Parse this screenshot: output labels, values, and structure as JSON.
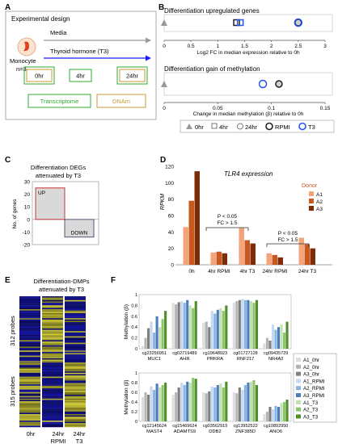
{
  "panel_a": {
    "letter": "A",
    "title": "Experimental design",
    "cell_label": "Monocyte",
    "n_label": "n=3",
    "media_label": "Media",
    "t3_label": "Thyroid hormone (T3)",
    "time_0": "0hr",
    "time_4": "4hr",
    "time_24": "24hr",
    "assay_1": "Transcriptome",
    "assay_2": "DNAm"
  },
  "panel_b": {
    "letter": "B",
    "legend_0hr": "0hr",
    "legend_4hr": "4hr",
    "legend_24hr": "24hr",
    "legend_rpmi": "RPMI",
    "legend_t3": "T3"
  },
  "panel_c": {
    "letter": "C"
  },
  "panel_d": {
    "letter": "D",
    "pv_1": "P < 0.05",
    "fc_1": "FC > 1.5",
    "pv_2": "P < 0.05",
    "fc_2": "FC > 1.5"
  },
  "panel_e": {
    "letter": "E",
    "title_1": "Differentiation-DMPs",
    "title_2": "attenuated by T3",
    "group_1": "312 probes",
    "group_2": "315 probes",
    "col_1": "0hr",
    "col_2_a": "24hr",
    "col_2_b": "RPMI",
    "col_3_a": "24hr",
    "col_3_b": "T3"
  },
  "panel_f": {
    "letter": "F"
  },
  "colors": {
    "media_arrow": "#999999",
    "t3_arrow": "#1a1aff",
    "assay_1": "#33aa33",
    "assay_2": "#cc9933",
    "rpmi": "#222222",
    "t3": "#2255ee",
    "donor_a1": "#f3a47b",
    "donor_a2": "#c8581e",
    "donor_a3": "#7f2c06",
    "heat_blue": "#1c1c9a",
    "heat_yellow": "#c8c83a"
  },
  "chart_data": [
    {
      "id": "upregulated",
      "type": "scatter",
      "title": "Differentiation upregulated genes",
      "xlabel": "Log2 FC in median expression relative to 0h",
      "xlim": [
        0,
        3
      ],
      "xticks": [
        0,
        0.5,
        1,
        1.5,
        2,
        2.5,
        3
      ],
      "points": [
        {
          "series": "0hr",
          "x": 0
        },
        {
          "series": "4hr RPMI",
          "x": 1.35
        },
        {
          "series": "4hr T3",
          "x": 1.42
        },
        {
          "series": "24hr RPMI",
          "x": 2.5
        },
        {
          "series": "24hr T3",
          "x": 2.5
        }
      ]
    },
    {
      "id": "methylation",
      "type": "scatter",
      "title": "Differentiation gain of methylation",
      "xlabel": "Change in median methylation (β) relative to 0h",
      "xlim": [
        0,
        0.15
      ],
      "xticks": [
        0,
        0.05,
        0.1,
        0.15
      ],
      "points": [
        {
          "series": "0hr",
          "x": 0
        },
        {
          "series": "24hr T3",
          "x": 0.092
        },
        {
          "series": "24hr RPMI",
          "x": 0.107
        }
      ]
    },
    {
      "id": "degs",
      "type": "bar",
      "title": "Differentiation DEGs attenuated by T3",
      "ylabel": "No. of genes",
      "ylim": [
        -20,
        30
      ],
      "yticks": [
        -20,
        -10,
        0,
        10,
        20,
        30
      ],
      "categories": [
        "UP",
        "DOWN"
      ],
      "values": [
        25,
        -14
      ]
    },
    {
      "id": "tlr4",
      "type": "bar",
      "title": "TLR4 expression",
      "ylabel": "RPKM",
      "legend_title": "Donor",
      "ylim": [
        0,
        120
      ],
      "yticks": [
        0,
        20,
        40,
        60,
        80,
        100,
        120
      ],
      "categories": [
        "0h",
        "4hr RPMI",
        "4hr T3",
        "24hr RPMI",
        "24hr T3"
      ],
      "series": [
        {
          "name": "A1",
          "values": [
            46,
            15,
            45,
            14,
            33
          ]
        },
        {
          "name": "A2",
          "values": [
            78,
            16,
            30,
            12,
            25
          ]
        },
        {
          "name": "A3",
          "values": [
            114,
            14,
            26,
            9,
            20
          ]
        }
      ]
    },
    {
      "id": "methyl_top",
      "type": "bar",
      "ylabel": "Methylation (β)",
      "ylim": [
        0,
        1
      ],
      "yticks": [
        0,
        0.2,
        0.4,
        0.6,
        0.8,
        1
      ],
      "legend": [
        "A1_0hr",
        "A2_0hr",
        "A3_0hr",
        "A1_RPMI",
        "A2_RPMI",
        "A3_RPMI",
        "A1_T3",
        "A2_T3",
        "A3_T3"
      ],
      "categories": [
        "cg23256951\nMUC1",
        "cg02719489\nAHR",
        "cg19648023\nPRKRA",
        "cg01727128\nRNF217",
        "cg09435729\nNR4A2"
      ],
      "values": [
        [
          0.05,
          0.2,
          0.38,
          0.5,
          0.3,
          0.6,
          0.4,
          0.55,
          0.7
        ],
        [
          0.85,
          0.82,
          0.86,
          0.88,
          0.85,
          0.9,
          0.8,
          0.75,
          0.88
        ],
        [
          0.48,
          0.5,
          0.4,
          0.7,
          0.65,
          0.72,
          0.75,
          0.7,
          0.8
        ],
        [
          0.85,
          0.88,
          0.9,
          0.92,
          0.9,
          0.9,
          0.88,
          0.85,
          0.9
        ],
        [
          0.1,
          0.2,
          0.15,
          0.45,
          0.35,
          0.4,
          0.45,
          0.3,
          0.5
        ]
      ]
    },
    {
      "id": "methyl_bottom",
      "type": "bar",
      "ylabel": "Methylation (β)",
      "ylim": [
        0,
        1
      ],
      "yticks": [
        0,
        0.2,
        0.4,
        0.6,
        0.8,
        1
      ],
      "categories": [
        "cg12145624\nMAST4",
        "cg15469624\nADAMTS9",
        "cg03562919\nDDB2",
        "cg13952522\nZNF385D",
        "cg10892950\nANO6"
      ],
      "values": [
        [
          0.5,
          0.6,
          0.55,
          0.72,
          0.65,
          0.78,
          0.7,
          0.75,
          0.8
        ],
        [
          0.55,
          0.6,
          0.7,
          0.8,
          0.75,
          0.82,
          0.8,
          0.9,
          0.88
        ],
        [
          0.6,
          0.58,
          0.62,
          0.72,
          0.7,
          0.75,
          0.78,
          0.7,
          0.82
        ],
        [
          0.6,
          0.58,
          0.7,
          0.65,
          0.75,
          0.8,
          0.82,
          0.85,
          0.75
        ],
        [
          0.15,
          0.2,
          0.3,
          0.25,
          0.32,
          0.3,
          0.38,
          0.4,
          0.45
        ]
      ]
    }
  ]
}
